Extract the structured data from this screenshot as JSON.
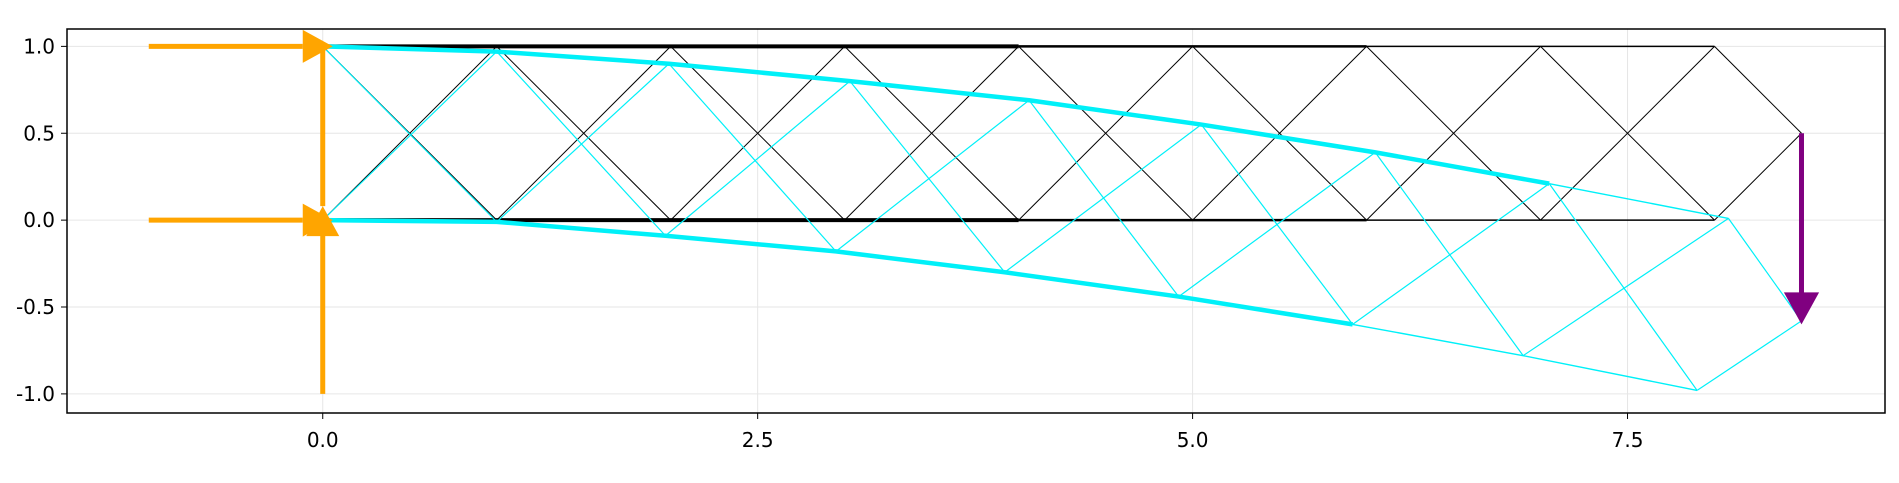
{
  "chart_data": {
    "type": "diagram",
    "title": "",
    "xlabel": "",
    "ylabel": "",
    "xlim": [
      -1.47,
      8.98
    ],
    "ylim": [
      -1.11,
      1.1
    ],
    "grid": true,
    "x_ticks": [
      {
        "value": 0.0,
        "label": "0.0"
      },
      {
        "value": 2.5,
        "label": "2.5"
      },
      {
        "value": 5.0,
        "label": "5.0"
      },
      {
        "value": 7.5,
        "label": "7.5"
      }
    ],
    "y_ticks": [
      {
        "value": 1.0,
        "label": "1.0"
      },
      {
        "value": 0.5,
        "label": "0.5"
      },
      {
        "value": 0.0,
        "label": "0.0"
      },
      {
        "value": -0.5,
        "label": "-0.5"
      },
      {
        "value": -1.0,
        "label": "-1.0"
      }
    ],
    "colors": {
      "original": "#000000",
      "deformed": "#00f0f8",
      "support": "#ffa500",
      "load": "#800080",
      "grid": "#e6e6e6",
      "frame": "#000000"
    },
    "original_truss": {
      "nodes": [
        [
          0,
          0
        ],
        [
          1,
          0
        ],
        [
          2,
          0
        ],
        [
          3,
          0
        ],
        [
          4,
          0
        ],
        [
          5,
          0
        ],
        [
          6,
          0
        ],
        [
          7,
          0
        ],
        [
          8,
          0
        ],
        [
          0,
          1
        ],
        [
          1,
          1
        ],
        [
          2,
          1
        ],
        [
          3,
          1
        ],
        [
          4,
          1
        ],
        [
          5,
          1
        ],
        [
          6,
          1
        ],
        [
          7,
          1
        ],
        [
          8,
          1
        ],
        [
          8.5,
          0.5
        ]
      ],
      "chords": [
        {
          "from": 9,
          "to": 17,
          "weight": 1.4
        },
        {
          "from": 0,
          "to": 8,
          "weight": 1.4
        },
        {
          "from": 9,
          "to": 13,
          "weight": 4
        },
        {
          "from": 0,
          "to": 4,
          "weight": 4
        },
        {
          "from": 13,
          "to": 15,
          "weight": 2.5
        },
        {
          "from": 4,
          "to": 6,
          "weight": 2.5
        }
      ],
      "web": [
        [
          0,
          10
        ],
        [
          9,
          1
        ],
        [
          1,
          11
        ],
        [
          10,
          2
        ],
        [
          2,
          12
        ],
        [
          11,
          3
        ],
        [
          3,
          13
        ],
        [
          12,
          4
        ],
        [
          4,
          14
        ],
        [
          13,
          5
        ],
        [
          5,
          15
        ],
        [
          14,
          6
        ],
        [
          6,
          16
        ],
        [
          15,
          7
        ],
        [
          7,
          17
        ],
        [
          16,
          8
        ],
        [
          17,
          18
        ],
        [
          8,
          18
        ]
      ]
    },
    "deformed_truss": {
      "nodes": [
        [
          0.0,
          0.0
        ],
        [
          1.0,
          -0.01
        ],
        [
          1.97,
          -0.09
        ],
        [
          2.95,
          -0.18
        ],
        [
          3.92,
          -0.3
        ],
        [
          4.92,
          -0.44
        ],
        [
          5.92,
          -0.6
        ],
        [
          6.9,
          -0.78
        ],
        [
          7.9,
          -0.98
        ],
        [
          0.0,
          1.0
        ],
        [
          1.0,
          0.97
        ],
        [
          1.99,
          0.9
        ],
        [
          3.03,
          0.8
        ],
        [
          4.06,
          0.69
        ],
        [
          5.05,
          0.55
        ],
        [
          6.05,
          0.39
        ],
        [
          7.05,
          0.21
        ],
        [
          8.08,
          0.01
        ],
        [
          8.5,
          -0.58
        ]
      ],
      "thick_chords": [
        [
          9,
          10,
          11,
          12,
          13,
          14,
          15,
          16
        ],
        [
          0,
          1,
          2,
          3,
          4,
          5,
          6
        ]
      ],
      "thin_chords": [
        [
          16,
          17
        ],
        [
          6,
          7,
          8
        ]
      ],
      "web": [
        [
          0,
          10
        ],
        [
          9,
          1
        ],
        [
          1,
          11
        ],
        [
          10,
          2
        ],
        [
          2,
          12
        ],
        [
          11,
          3
        ],
        [
          3,
          13
        ],
        [
          12,
          4
        ],
        [
          4,
          14
        ],
        [
          13,
          5
        ],
        [
          5,
          15
        ],
        [
          14,
          6
        ],
        [
          6,
          16
        ],
        [
          15,
          7
        ],
        [
          7,
          17
        ],
        [
          16,
          8
        ],
        [
          17,
          18
        ],
        [
          8,
          18
        ]
      ]
    },
    "supports": [
      {
        "node": [
          0,
          1
        ],
        "horizontal_arrow": true,
        "vertical_arrow": false
      },
      {
        "node": [
          0,
          0
        ],
        "horizontal_arrow": true,
        "vertical_arrow": true
      }
    ],
    "support_reach": {
      "horizontal_from_x": -1.0,
      "vertical_from_y": -1.0
    },
    "loads": [
      {
        "node": [
          8.5,
          0.5
        ],
        "dx": 0,
        "dy": -1.1
      }
    ]
  }
}
